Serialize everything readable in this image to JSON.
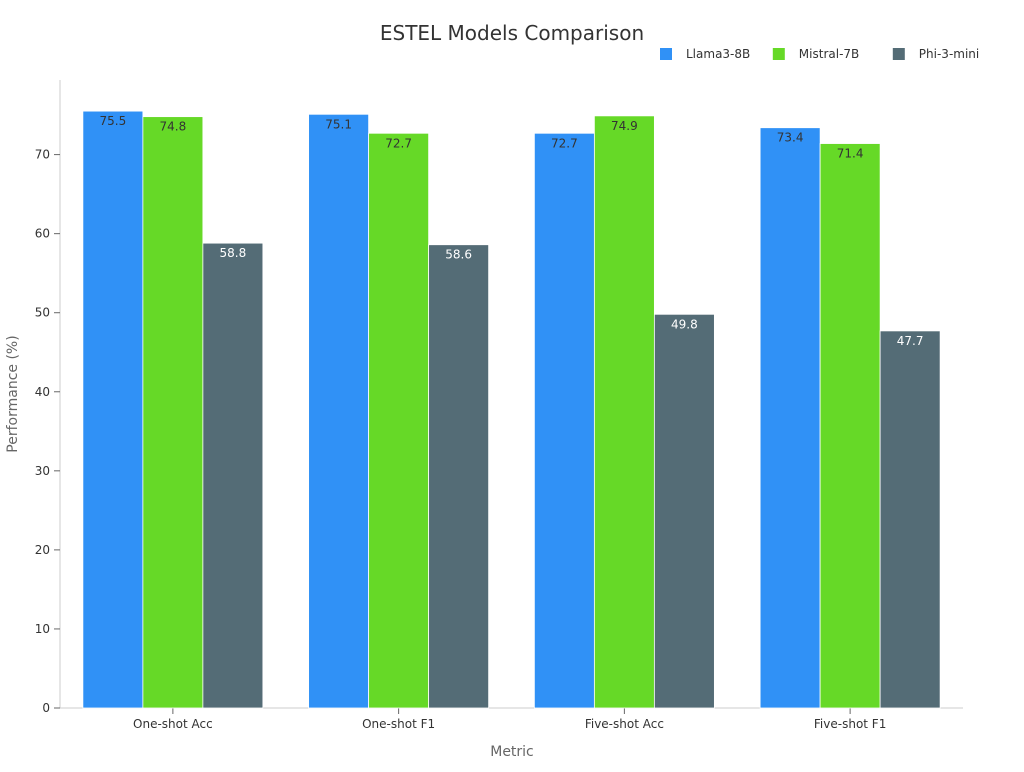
{
  "chart_data": {
    "type": "bar",
    "title": "ESTEL Models Comparison",
    "xlabel": "Metric",
    "ylabel": "Performance (%)",
    "categories": [
      "One-shot Acc",
      "One-shot F1",
      "Five-shot Acc",
      "Five-shot F1"
    ],
    "series": [
      {
        "name": "Llama3-8B",
        "color": "#3091f6",
        "label_color": "#333333",
        "values": [
          75.5,
          75.1,
          72.7,
          73.4
        ]
      },
      {
        "name": "Mistral-7B",
        "color": "#66d927",
        "label_color": "#333333",
        "values": [
          74.8,
          72.7,
          74.9,
          71.4
        ]
      },
      {
        "name": "Phi-3-mini",
        "color": "#546c76",
        "label_color": "#ffffff",
        "values": [
          58.8,
          58.6,
          49.8,
          47.7
        ]
      }
    ],
    "ylim": [
      0,
      79
    ],
    "yticks": [
      0,
      10,
      20,
      30,
      40,
      50,
      60,
      70
    ],
    "grid": false,
    "legend_position": "top-right"
  }
}
